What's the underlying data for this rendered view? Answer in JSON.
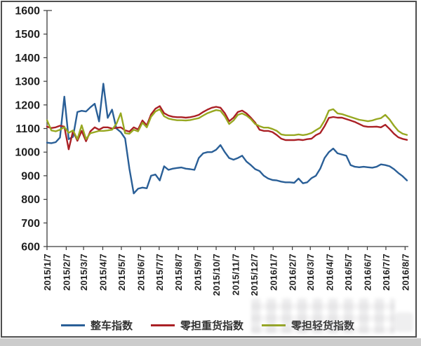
{
  "page": {
    "background_color": "#ffffff",
    "frame_border_color": "#4f4f4f",
    "bottom_strip_color": "#cccccc"
  },
  "chart_data": {
    "type": "line",
    "title": "",
    "xlabel": "",
    "ylabel": "",
    "grid": false,
    "legend_position": "bottom",
    "x_unit": "weekly",
    "ylim": [
      600,
      1600
    ],
    "y_ticks": [
      600,
      700,
      800,
      900,
      1000,
      1100,
      1200,
      1300,
      1400,
      1500,
      1600
    ],
    "x_tick_labels": [
      "2015/1/7",
      "2015/2/7",
      "2015/3/7",
      "2015/4/7",
      "2015/5/7",
      "2015/6/7",
      "2015/7/7",
      "2015/8/7",
      "2015/9/7",
      "2015/10/7",
      "2015/11/7",
      "2015/12/7",
      "2016/1/7",
      "2016/2/7",
      "2016/3/7",
      "2016/4/7",
      "2016/5/7",
      "2016/6/7",
      "2016/7/7",
      "2016/8/7"
    ],
    "x_tick_weeks": [
      0,
      4.43,
      8.43,
      12.86,
      17.14,
      21.57,
      25.86,
      30.29,
      34.71,
      39.0,
      43.43,
      47.71,
      52.14,
      56.57,
      60.71,
      65.14,
      69.43,
      73.86,
      78.14,
      82.57
    ],
    "total_weeks": 83,
    "series": [
      {
        "name": "整车指数",
        "color": "#2A5F97",
        "values": [
          1040,
          1038,
          1042,
          1062,
          1235,
          1055,
          1065,
          1170,
          1175,
          1172,
          1190,
          1205,
          1130,
          1290,
          1145,
          1180,
          1100,
          1085,
          1058,
          930,
          825,
          845,
          850,
          847,
          900,
          905,
          880,
          940,
          925,
          930,
          933,
          935,
          930,
          928,
          925,
          975,
          995,
          1000,
          1000,
          1010,
          1030,
          1000,
          975,
          968,
          975,
          985,
          960,
          945,
          928,
          920,
          900,
          888,
          882,
          880,
          875,
          872,
          872,
          870,
          888,
          868,
          872,
          890,
          900,
          930,
          975,
          1000,
          1015,
          995,
          990,
          985,
          945,
          938,
          936,
          938,
          936,
          934,
          938,
          948,
          945,
          940,
          928,
          912,
          898,
          880
        ]
      },
      {
        "name": "零担重货指数",
        "color": "#AA2025",
        "values": [
          1108,
          1102,
          1105,
          1112,
          1108,
          1012,
          1090,
          1048,
          1090,
          1046,
          1088,
          1105,
          1095,
          1105,
          1105,
          1100,
          1103,
          1105,
          1092,
          1087,
          1105,
          1096,
          1134,
          1113,
          1160,
          1184,
          1195,
          1165,
          1155,
          1150,
          1148,
          1148,
          1146,
          1148,
          1152,
          1158,
          1170,
          1180,
          1188,
          1192,
          1188,
          1165,
          1131,
          1146,
          1170,
          1176,
          1164,
          1146,
          1125,
          1095,
          1090,
          1090,
          1085,
          1072,
          1057,
          1051,
          1051,
          1051,
          1053,
          1051,
          1055,
          1057,
          1072,
          1081,
          1110,
          1145,
          1149,
          1146,
          1146,
          1140,
          1134,
          1128,
          1119,
          1110,
          1107,
          1107,
          1108,
          1105,
          1116,
          1098,
          1078,
          1063,
          1056,
          1052
        ]
      },
      {
        "name": "零担轻货指数",
        "color": "#97A821",
        "values": [
          1135,
          1092,
          1088,
          1095,
          1106,
          1082,
          1092,
          1055,
          1114,
          1055,
          1080,
          1085,
          1090,
          1090,
          1092,
          1095,
          1120,
          1165,
          1080,
          1078,
          1095,
          1088,
          1125,
          1105,
          1150,
          1172,
          1182,
          1152,
          1142,
          1138,
          1135,
          1135,
          1134,
          1136,
          1140,
          1144,
          1155,
          1165,
          1172,
          1178,
          1175,
          1152,
          1119,
          1134,
          1158,
          1164,
          1155,
          1140,
          1119,
          1110,
          1104,
          1104,
          1098,
          1090,
          1075,
          1072,
          1072,
          1072,
          1075,
          1072,
          1075,
          1081,
          1093,
          1104,
          1134,
          1176,
          1182,
          1164,
          1161,
          1155,
          1149,
          1143,
          1137,
          1134,
          1131,
          1134,
          1140,
          1144,
          1158,
          1138,
          1112,
          1090,
          1078,
          1073
        ]
      }
    ]
  }
}
